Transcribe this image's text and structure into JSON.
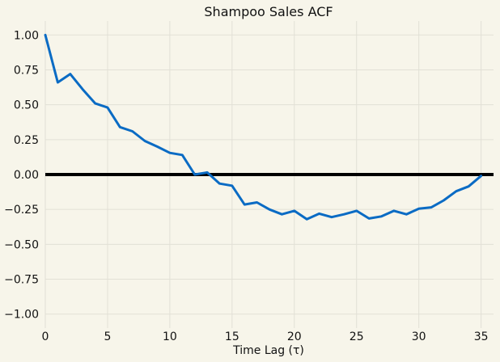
{
  "chart_data": {
    "type": "line",
    "title": "Shampoo Sales ACF",
    "xlabel": "Time Lag (τ)",
    "ylabel": "",
    "xlim": [
      0,
      36
    ],
    "ylim": [
      -1.1,
      1.1
    ],
    "xticks": [
      0,
      5,
      10,
      15,
      20,
      25,
      30,
      35
    ],
    "xtick_labels": [
      "0",
      "5",
      "10",
      "15",
      "20",
      "25",
      "30",
      "35"
    ],
    "yticks": [
      1.0,
      0.75,
      0.5,
      0.25,
      0.0,
      -0.25,
      -0.5,
      -0.75,
      -1.0
    ],
    "ytick_labels": [
      "1.00",
      "0.75",
      "0.50",
      "0.25",
      "0.00",
      "−0.25",
      "−0.50",
      "−0.75",
      "−1.00"
    ],
    "grid": true,
    "reference_line": {
      "y": 0.0,
      "color": "#000000"
    },
    "series": [
      {
        "color": "#0a6bc4",
        "x": [
          0,
          1,
          2,
          3,
          4,
          5,
          6,
          7,
          8,
          9,
          10,
          11,
          12,
          13,
          14,
          15,
          16,
          17,
          18,
          19,
          20,
          21,
          22,
          23,
          24,
          25,
          26,
          27,
          28,
          29,
          30,
          31,
          32,
          33,
          34,
          35
        ],
        "y": [
          1.0,
          0.66,
          0.72,
          0.61,
          0.51,
          0.48,
          0.34,
          0.31,
          0.24,
          0.2,
          0.155,
          0.14,
          0.0,
          0.015,
          -0.065,
          -0.08,
          -0.215,
          -0.2,
          -0.25,
          -0.285,
          -0.26,
          -0.32,
          -0.28,
          -0.305,
          -0.285,
          -0.26,
          -0.315,
          -0.3,
          -0.26,
          -0.285,
          -0.245,
          -0.235,
          -0.185,
          -0.12,
          -0.085,
          -0.01
        ]
      }
    ]
  },
  "colors": {
    "background": "#f7f5ea",
    "grid": "#e2e0d6",
    "line": "#0a6bc4",
    "zero_line": "#000000"
  }
}
